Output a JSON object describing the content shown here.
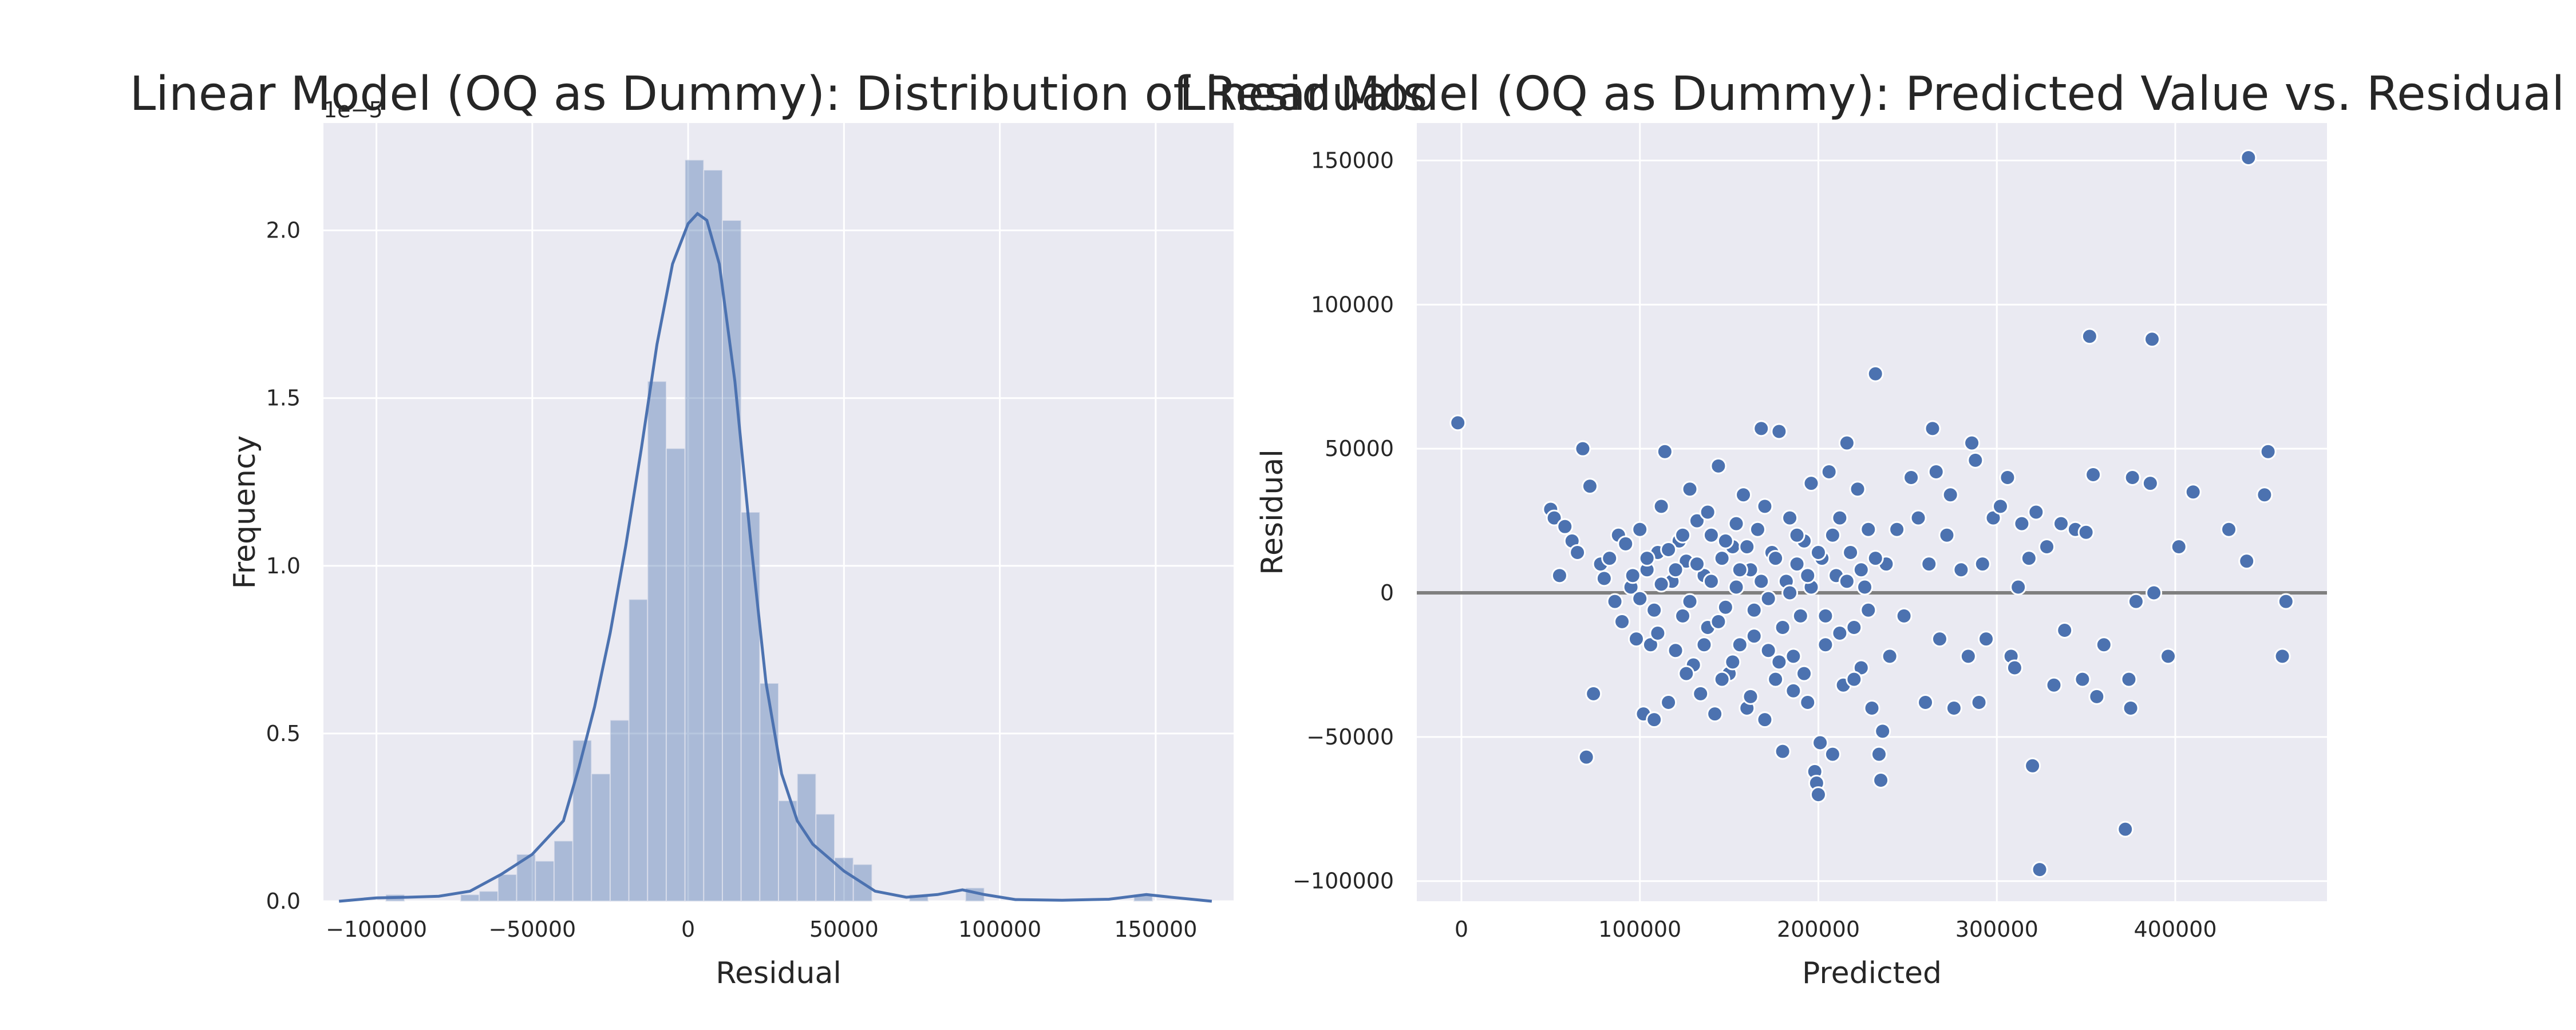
{
  "chart_data": [
    {
      "type": "bar",
      "title": "Linear Model (OQ as Dummy): Distribution of Residuals",
      "xlabel": "Residual",
      "ylabel": "Frequency",
      "y_offset_label": "1e−5",
      "xlim": [
        -117000,
        175000
      ],
      "ylim": [
        0,
        2.32
      ],
      "x_ticks": [
        -100000,
        -50000,
        0,
        50000,
        100000,
        150000
      ],
      "x_tick_labels": [
        "−100000",
        "−50000",
        "0",
        "50000",
        "100000",
        "150000"
      ],
      "y_ticks": [
        0.0,
        0.5,
        1.0,
        1.5,
        2.0
      ],
      "y_tick_labels": [
        "0.0",
        "0.5",
        "1.0",
        "1.5",
        "2.0"
      ],
      "grid": true,
      "bins": [
        {
          "x0": -97000,
          "x1": -91000,
          "y": 0.02
        },
        {
          "x0": -73000,
          "x1": -67000,
          "y": 0.02
        },
        {
          "x0": -67000,
          "x1": -61000,
          "y": 0.03
        },
        {
          "x0": -61000,
          "x1": -55000,
          "y": 0.08
        },
        {
          "x0": -55000,
          "x1": -49000,
          "y": 0.14
        },
        {
          "x0": -49000,
          "x1": -43000,
          "y": 0.12
        },
        {
          "x0": -43000,
          "x1": -37000,
          "y": 0.18
        },
        {
          "x0": -37000,
          "x1": -31000,
          "y": 0.48
        },
        {
          "x0": -31000,
          "x1": -25000,
          "y": 0.38
        },
        {
          "x0": -25000,
          "x1": -19000,
          "y": 0.54
        },
        {
          "x0": -19000,
          "x1": -13000,
          "y": 0.9
        },
        {
          "x0": -13000,
          "x1": -7000,
          "y": 1.55
        },
        {
          "x0": -7000,
          "x1": -1000,
          "y": 1.35
        },
        {
          "x0": -1000,
          "x1": 5000,
          "y": 2.21
        },
        {
          "x0": 5000,
          "x1": 11000,
          "y": 2.18
        },
        {
          "x0": 11000,
          "x1": 17000,
          "y": 2.03
        },
        {
          "x0": 17000,
          "x1": 23000,
          "y": 1.16
        },
        {
          "x0": 23000,
          "x1": 29000,
          "y": 0.65
        },
        {
          "x0": 29000,
          "x1": 35000,
          "y": 0.3
        },
        {
          "x0": 35000,
          "x1": 41000,
          "y": 0.38
        },
        {
          "x0": 41000,
          "x1": 47000,
          "y": 0.26
        },
        {
          "x0": 47000,
          "x1": 53000,
          "y": 0.13
        },
        {
          "x0": 53000,
          "x1": 59000,
          "y": 0.11
        },
        {
          "x0": 71000,
          "x1": 77000,
          "y": 0.02
        },
        {
          "x0": 89000,
          "x1": 95000,
          "y": 0.04
        },
        {
          "x0": 143000,
          "x1": 149000,
          "y": 0.02
        }
      ],
      "kde": [
        [
          -112000,
          0.0
        ],
        [
          -100000,
          0.01
        ],
        [
          -90000,
          0.012
        ],
        [
          -80000,
          0.015
        ],
        [
          -70000,
          0.03
        ],
        [
          -60000,
          0.08
        ],
        [
          -50000,
          0.14
        ],
        [
          -40000,
          0.24
        ],
        [
          -35000,
          0.4
        ],
        [
          -30000,
          0.58
        ],
        [
          -25000,
          0.8
        ],
        [
          -20000,
          1.06
        ],
        [
          -15000,
          1.35
        ],
        [
          -10000,
          1.66
        ],
        [
          -5000,
          1.9
        ],
        [
          0,
          2.02
        ],
        [
          3000,
          2.05
        ],
        [
          6000,
          2.03
        ],
        [
          10000,
          1.9
        ],
        [
          15000,
          1.55
        ],
        [
          20000,
          1.08
        ],
        [
          25000,
          0.65
        ],
        [
          30000,
          0.38
        ],
        [
          35000,
          0.24
        ],
        [
          40000,
          0.17
        ],
        [
          45000,
          0.13
        ],
        [
          50000,
          0.09
        ],
        [
          55000,
          0.06
        ],
        [
          60000,
          0.03
        ],
        [
          70000,
          0.012
        ],
        [
          80000,
          0.02
        ],
        [
          88000,
          0.034
        ],
        [
          95000,
          0.02
        ],
        [
          105000,
          0.005
        ],
        [
          120000,
          0.003
        ],
        [
          135000,
          0.006
        ],
        [
          147000,
          0.02
        ],
        [
          155000,
          0.012
        ],
        [
          168000,
          0.0
        ]
      ]
    },
    {
      "type": "scatter",
      "title": "Linear Model (OQ as Dummy): Predicted Value vs. Residual",
      "xlabel": "Predicted",
      "ylabel": "Residual",
      "xlim": [
        -25000,
        485000
      ],
      "ylim": [
        -107000,
        163000
      ],
      "x_ticks": [
        0,
        100000,
        200000,
        300000,
        400000
      ],
      "x_tick_labels": [
        "0",
        "100000",
        "200000",
        "300000",
        "400000"
      ],
      "y_ticks": [
        -100000,
        -50000,
        0,
        50000,
        100000,
        150000
      ],
      "y_tick_labels": [
        "−100000",
        "−50000",
        "0",
        "50000",
        "100000",
        "150000"
      ],
      "reference_line_y": 0,
      "grid": true,
      "points": [
        [
          -2000,
          59000
        ],
        [
          68000,
          50000
        ],
        [
          72000,
          37000
        ],
        [
          70000,
          -57000
        ],
        [
          74000,
          -35000
        ],
        [
          50000,
          29000
        ],
        [
          52000,
          26000
        ],
        [
          58000,
          23000
        ],
        [
          62000,
          18000
        ],
        [
          65000,
          14000
        ],
        [
          55000,
          6000
        ],
        [
          78000,
          10000
        ],
        [
          80000,
          5000
        ],
        [
          83000,
          12000
        ],
        [
          86000,
          -3000
        ],
        [
          88000,
          20000
        ],
        [
          90000,
          -10000
        ],
        [
          92000,
          17000
        ],
        [
          95000,
          2000
        ],
        [
          98000,
          -16000
        ],
        [
          100000,
          22000
        ],
        [
          102000,
          -42000
        ],
        [
          104000,
          8000
        ],
        [
          106000,
          -18000
        ],
        [
          108000,
          -44000
        ],
        [
          110000,
          14000
        ],
        [
          112000,
          30000
        ],
        [
          114000,
          49000
        ],
        [
          116000,
          -38000
        ],
        [
          118000,
          4000
        ],
        [
          120000,
          -20000
        ],
        [
          122000,
          18000
        ],
        [
          124000,
          -8000
        ],
        [
          126000,
          11000
        ],
        [
          128000,
          36000
        ],
        [
          130000,
          -25000
        ],
        [
          132000,
          25000
        ],
        [
          134000,
          -35000
        ],
        [
          136000,
          6000
        ],
        [
          138000,
          -12000
        ],
        [
          140000,
          20000
        ],
        [
          142000,
          -42000
        ],
        [
          144000,
          44000
        ],
        [
          146000,
          12000
        ],
        [
          148000,
          -5000
        ],
        [
          150000,
          -28000
        ],
        [
          152000,
          16000
        ],
        [
          154000,
          2000
        ],
        [
          156000,
          -18000
        ],
        [
          158000,
          34000
        ],
        [
          160000,
          -40000
        ],
        [
          162000,
          8000
        ],
        [
          164000,
          -15000
        ],
        [
          166000,
          22000
        ],
        [
          168000,
          57000
        ],
        [
          170000,
          -44000
        ],
        [
          172000,
          -2000
        ],
        [
          174000,
          14000
        ],
        [
          176000,
          -30000
        ],
        [
          178000,
          56000
        ],
        [
          180000,
          -55000
        ],
        [
          182000,
          4000
        ],
        [
          184000,
          26000
        ],
        [
          186000,
          -22000
        ],
        [
          188000,
          10000
        ],
        [
          190000,
          -8000
        ],
        [
          192000,
          18000
        ],
        [
          194000,
          -38000
        ],
        [
          196000,
          38000
        ],
        [
          198000,
          -62000
        ],
        [
          199000,
          -66000
        ],
        [
          200000,
          -70000
        ],
        [
          201000,
          -52000
        ],
        [
          202000,
          12000
        ],
        [
          204000,
          -18000
        ],
        [
          206000,
          42000
        ],
        [
          208000,
          -56000
        ],
        [
          210000,
          6000
        ],
        [
          212000,
          26000
        ],
        [
          214000,
          -32000
        ],
        [
          216000,
          52000
        ],
        [
          218000,
          14000
        ],
        [
          220000,
          -12000
        ],
        [
          222000,
          36000
        ],
        [
          224000,
          -26000
        ],
        [
          226000,
          2000
        ],
        [
          228000,
          22000
        ],
        [
          230000,
          -40000
        ],
        [
          232000,
          76000
        ],
        [
          234000,
          -56000
        ],
        [
          235000,
          -65000
        ],
        [
          236000,
          -48000
        ],
        [
          238000,
          10000
        ],
        [
          240000,
          -22000
        ],
        [
          244000,
          22000
        ],
        [
          248000,
          -8000
        ],
        [
          252000,
          40000
        ],
        [
          256000,
          26000
        ],
        [
          260000,
          -38000
        ],
        [
          262000,
          10000
        ],
        [
          264000,
          57000
        ],
        [
          266000,
          42000
        ],
        [
          268000,
          -16000
        ],
        [
          272000,
          20000
        ],
        [
          274000,
          34000
        ],
        [
          276000,
          -40000
        ],
        [
          280000,
          8000
        ],
        [
          284000,
          -22000
        ],
        [
          286000,
          52000
        ],
        [
          288000,
          46000
        ],
        [
          290000,
          -38000
        ],
        [
          292000,
          10000
        ],
        [
          294000,
          -16000
        ],
        [
          298000,
          26000
        ],
        [
          302000,
          30000
        ],
        [
          306000,
          40000
        ],
        [
          308000,
          -22000
        ],
        [
          310000,
          -26000
        ],
        [
          312000,
          2000
        ],
        [
          314000,
          24000
        ],
        [
          318000,
          12000
        ],
        [
          320000,
          -60000
        ],
        [
          322000,
          28000
        ],
        [
          324000,
          -96000
        ],
        [
          328000,
          16000
        ],
        [
          332000,
          -32000
        ],
        [
          336000,
          24000
        ],
        [
          338000,
          -13000
        ],
        [
          344000,
          22000
        ],
        [
          348000,
          -30000
        ],
        [
          350000,
          21000
        ],
        [
          352000,
          89000
        ],
        [
          354000,
          41000
        ],
        [
          356000,
          -36000
        ],
        [
          360000,
          -18000
        ],
        [
          372000,
          -82000
        ],
        [
          374000,
          -30000
        ],
        [
          375000,
          -40000
        ],
        [
          376000,
          40000
        ],
        [
          378000,
          -3000
        ],
        [
          386000,
          38000
        ],
        [
          387000,
          88000
        ],
        [
          388000,
          0
        ],
        [
          396000,
          -22000
        ],
        [
          402000,
          16000
        ],
        [
          410000,
          35000
        ],
        [
          430000,
          22000
        ],
        [
          440000,
          11000
        ],
        [
          441000,
          151000
        ],
        [
          450000,
          34000
        ],
        [
          452000,
          49000
        ],
        [
          460000,
          -22000
        ],
        [
          462000,
          -3000
        ],
        [
          96000,
          6000
        ],
        [
          100000,
          -2000
        ],
        [
          104000,
          12000
        ],
        [
          108000,
          -6000
        ],
        [
          112000,
          3000
        ],
        [
          116000,
          15000
        ],
        [
          120000,
          8000
        ],
        [
          124000,
          20000
        ],
        [
          128000,
          -3000
        ],
        [
          132000,
          10000
        ],
        [
          136000,
          -18000
        ],
        [
          140000,
          4000
        ],
        [
          144000,
          -10000
        ],
        [
          148000,
          18000
        ],
        [
          152000,
          -24000
        ],
        [
          156000,
          8000
        ],
        [
          160000,
          16000
        ],
        [
          164000,
          -6000
        ],
        [
          168000,
          4000
        ],
        [
          172000,
          -20000
        ],
        [
          176000,
          12000
        ],
        [
          180000,
          -12000
        ],
        [
          184000,
          0
        ],
        [
          188000,
          20000
        ],
        [
          192000,
          -28000
        ],
        [
          196000,
          2000
        ],
        [
          200000,
          14000
        ],
        [
          204000,
          -8000
        ],
        [
          208000,
          20000
        ],
        [
          212000,
          -14000
        ],
        [
          216000,
          4000
        ],
        [
          220000,
          -30000
        ],
        [
          224000,
          8000
        ],
        [
          228000,
          -6000
        ],
        [
          232000,
          12000
        ],
        [
          110000,
          -14000
        ],
        [
          126000,
          -28000
        ],
        [
          146000,
          -30000
        ],
        [
          162000,
          -36000
        ],
        [
          178000,
          -24000
        ],
        [
          138000,
          28000
        ],
        [
          154000,
          24000
        ],
        [
          170000,
          30000
        ],
        [
          186000,
          -34000
        ],
        [
          194000,
          6000
        ]
      ]
    }
  ]
}
